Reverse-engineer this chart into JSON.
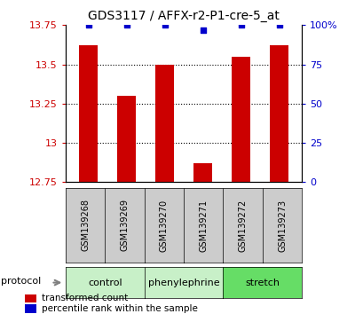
{
  "title": "GDS3117 / AFFX-r2-P1-cre-5_at",
  "samples": [
    "GSM139268",
    "GSM139269",
    "GSM139270",
    "GSM139271",
    "GSM139272",
    "GSM139273"
  ],
  "transformed_counts": [
    13.62,
    13.3,
    13.5,
    12.87,
    13.55,
    13.62
  ],
  "percentile_ranks": [
    100,
    100,
    100,
    97,
    100,
    100
  ],
  "ylim_left": [
    12.75,
    13.75
  ],
  "ylim_right": [
    0,
    100
  ],
  "yticks_left": [
    12.75,
    13.0,
    13.25,
    13.5,
    13.75
  ],
  "yticks_right": [
    0,
    25,
    50,
    75,
    100
  ],
  "ytick_labels_left": [
    "12.75",
    "13",
    "13.25",
    "13.5",
    "13.75"
  ],
  "ytick_labels_right": [
    "0",
    "25",
    "50",
    "75",
    "100%"
  ],
  "dotted_yticks": [
    13.0,
    13.25,
    13.5
  ],
  "groups": [
    {
      "label": "control",
      "samples": [
        0,
        1
      ],
      "color": "#c8f0c8"
    },
    {
      "label": "phenylephrine",
      "samples": [
        2,
        3
      ],
      "color": "#c8f0c8"
    },
    {
      "label": "stretch",
      "samples": [
        4,
        5
      ],
      "color": "#66dd66"
    }
  ],
  "bar_color": "#cc0000",
  "percentile_color": "#0000cc",
  "bar_width": 0.5,
  "sample_box_color": "#cccccc",
  "legend_items": [
    {
      "color": "#cc0000",
      "label": "transformed count"
    },
    {
      "color": "#0000cc",
      "label": "percentile rank within the sample"
    }
  ]
}
